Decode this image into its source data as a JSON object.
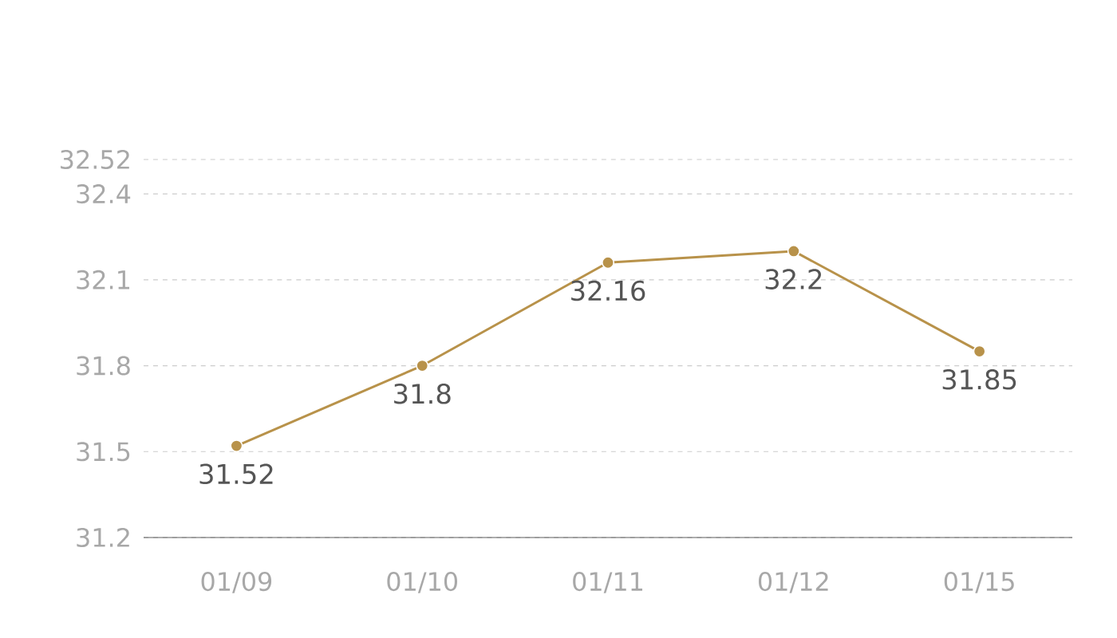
{
  "chart_data": {
    "type": "line",
    "categories": [
      "01/09",
      "01/10",
      "01/11",
      "01/12",
      "01/15"
    ],
    "series": [
      {
        "color": "#b8924a",
        "values": [
          31.52,
          31.8,
          32.16,
          32.2,
          31.85
        ]
      }
    ],
    "ylim": [
      31.2,
      32.52
    ],
    "yticks": [
      31.2,
      31.5,
      31.8,
      32.1,
      32.4,
      32.52
    ],
    "grid": "y",
    "marker": "circle",
    "line_style": "solid",
    "data_labels": true
  }
}
